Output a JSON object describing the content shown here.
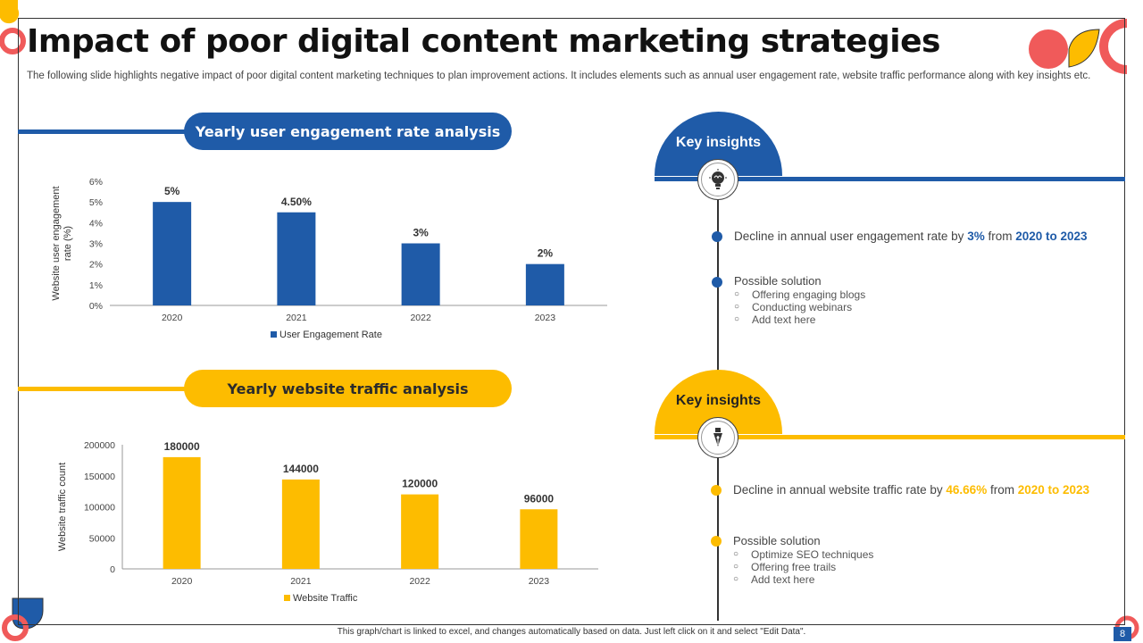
{
  "title": "Impact of poor digital content marketing strategies",
  "subtitle": "The following slide highlights negative impact of poor digital content marketing techniques to plan improvement actions. It includes elements such as annual user engagement rate, website traffic performance along with key insights etc.",
  "footer": "This graph/chart is linked to excel, and changes automatically based on data. Just left click on it and select \"Edit Data\".",
  "page_number": "8",
  "colors": {
    "blue": "#1f5ba8",
    "yellow": "#fdbc00",
    "red": "#f05a5a"
  },
  "section1": {
    "pill": "Yearly user engagement rate analysis"
  },
  "section2": {
    "pill": "Yearly website traffic analysis"
  },
  "insights1": {
    "title": "Key insights",
    "icon": "brain-bulb-icon",
    "line_prefix": "Decline in annual user engagement rate by",
    "value": "3%",
    "line_mid": "from",
    "range": "2020 to 2023",
    "solution_title": "Possible solution",
    "solutions": [
      "Offering engaging blogs",
      "Conducting webinars",
      "Add text here"
    ]
  },
  "insights2": {
    "title": "Key insights",
    "icon": "pen-nib-icon",
    "line_prefix": "Decline in annual website traffic rate by",
    "value": "46.66%",
    "line_mid": "from",
    "range": "2020 to 2023",
    "solution_title": "Possible solution",
    "solutions": [
      "Optimize SEO techniques",
      "Offering free trails",
      "Add text here"
    ]
  },
  "chart_data": [
    {
      "type": "bar",
      "categories": [
        "2020",
        "2021",
        "2022",
        "2023"
      ],
      "values": [
        5,
        4.5,
        3,
        2
      ],
      "data_labels": [
        "5%",
        "4.50%",
        "3%",
        "2%"
      ],
      "ylabel": "Website user engagement rate (%)",
      "yticks": [
        "0%",
        "1%",
        "2%",
        "3%",
        "4%",
        "5%",
        "6%"
      ],
      "ylim": [
        0,
        6
      ],
      "legend": "User Engagement Rate",
      "color": "#1f5ba8"
    },
    {
      "type": "bar",
      "categories": [
        "2020",
        "2021",
        "2022",
        "2023"
      ],
      "values": [
        180000,
        144000,
        120000,
        96000
      ],
      "data_labels": [
        "180000",
        "144000",
        "120000",
        "96000"
      ],
      "ylabel": "Website traffic count",
      "yticks": [
        "0",
        "50000",
        "100000",
        "150000",
        "200000"
      ],
      "ylim": [
        0,
        200000
      ],
      "legend": "Website Traffic",
      "color": "#fdbc00"
    }
  ]
}
